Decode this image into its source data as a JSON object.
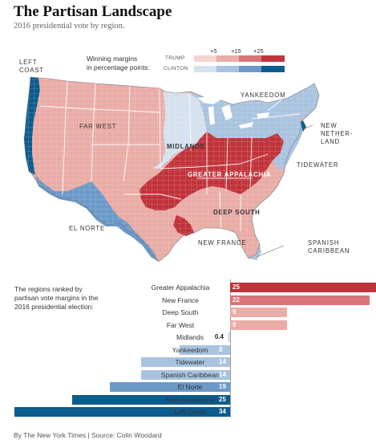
{
  "title": "The Partisan Landscape",
  "subtitle": "2016 presidential vote by region.",
  "legend": {
    "label_line1": "Winning margins",
    "label_line2": "in percentage points:",
    "trump": "TRUMP",
    "clinton": "CLINTON",
    "thresholds": [
      "+5",
      "+15",
      "+25"
    ],
    "trump_colors": [
      "#f5d4d0",
      "#e9aca6",
      "#d9747a",
      "#c0333a"
    ],
    "clinton_colors": [
      "#d5e1ef",
      "#a9c3df",
      "#6b99c8",
      "#0c5b8e"
    ]
  },
  "map_labels": {
    "left_coast_1": "LEFT",
    "left_coast_2": "COAST",
    "far_west": "FAR WEST",
    "midlands": "MIDLANDS",
    "yankeedom": "YANKEEDOM",
    "new_netherland_1": "NEW",
    "new_netherland_2": "NETHER-",
    "new_netherland_3": "LAND",
    "greater_appalachia": "GREATER APPALACHIA",
    "tidewater": "TIDEWATER",
    "deep_south": "DEEP SOUTH",
    "el_norte": "EL NORTE",
    "new_france": "NEW FRANCE",
    "spanish_caribbean_1": "SPANISH",
    "spanish_caribbean_2": "CARIBBEAN"
  },
  "ranking": {
    "intro_1": "The regions ranked by",
    "intro_2": "partisan vote margins in the",
    "intro_3": "2016 presidential election:",
    "rows": [
      {
        "name": "Greater Appalachia",
        "value": 25,
        "value_label": "25",
        "party": "trump"
      },
      {
        "name": "New France",
        "value": 22,
        "value_label": "22",
        "party": "trump"
      },
      {
        "name": "Deep South",
        "value": 9,
        "value_label": "9",
        "party": "trump"
      },
      {
        "name": "Far West",
        "value": 9,
        "value_label": "9",
        "party": "trump"
      },
      {
        "name": "Midlands",
        "value": 0.4,
        "value_label": "0.4",
        "party": "clinton"
      },
      {
        "name": "Yankeedom",
        "value": 8,
        "value_label": "8",
        "party": "clinton"
      },
      {
        "name": "Tidewater",
        "value": 14,
        "value_label": "14",
        "party": "clinton"
      },
      {
        "name": "Spanish Caribbean",
        "value": 14,
        "value_label": "14",
        "party": "clinton"
      },
      {
        "name": "El Norte",
        "value": 19,
        "value_label": "19",
        "party": "clinton"
      },
      {
        "name": "New Netherland",
        "value": 25,
        "value_label": "25",
        "party": "clinton"
      },
      {
        "name": "Left Coast",
        "value": 34,
        "value_label": "34",
        "party": "clinton"
      }
    ]
  },
  "footer": "By The New York Times | Source: Colin Woodard"
}
